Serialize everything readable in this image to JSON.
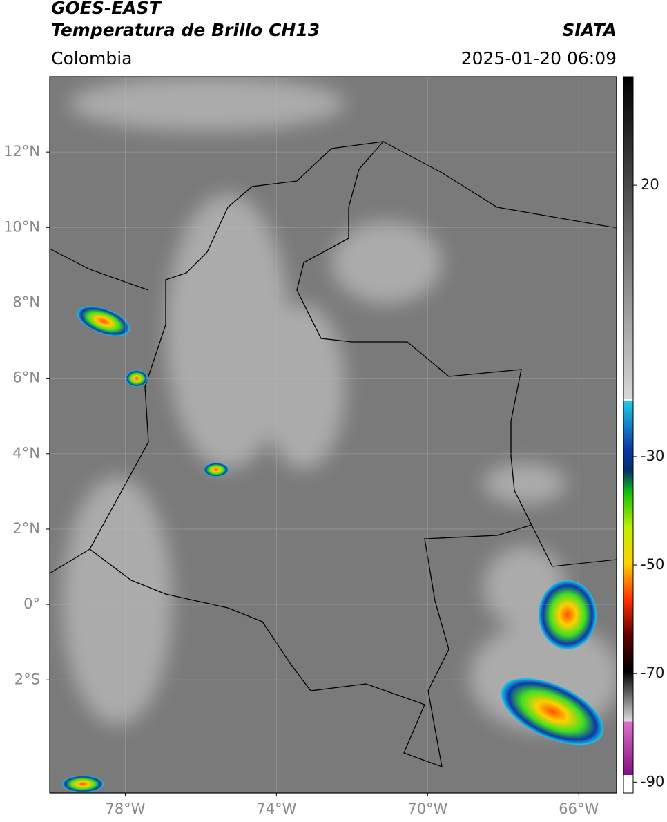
{
  "header": {
    "satellite": "GOES-EAST",
    "product": "Temperatura de Brillo CH13",
    "institution": "SIATA",
    "region": "Colombia",
    "datetime": "2025-01-20 06:09"
  },
  "map": {
    "lonlim": [
      -80,
      -65
    ],
    "latlim": [
      -5,
      14
    ],
    "grid": true,
    "lonticks": [
      {
        "value": -78,
        "label": "78°W"
      },
      {
        "value": -74,
        "label": "74°W"
      },
      {
        "value": -70,
        "label": "70°W"
      },
      {
        "value": -66,
        "label": "66°W"
      }
    ],
    "latticks": [
      {
        "value": 12,
        "label": "12°N"
      },
      {
        "value": 10,
        "label": "10°N"
      },
      {
        "value": 8,
        "label": "8°N"
      },
      {
        "value": 6,
        "label": "6°N"
      },
      {
        "value": 4,
        "label": "4°N"
      },
      {
        "value": 2,
        "label": "2°N"
      },
      {
        "value": 0,
        "label": "0°"
      },
      {
        "value": -2,
        "label": "2°S"
      }
    ]
  },
  "colorbar": {
    "clim": [
      -92,
      40
    ],
    "ticks": [
      20,
      -30,
      -50,
      -70,
      -90
    ]
  }
}
